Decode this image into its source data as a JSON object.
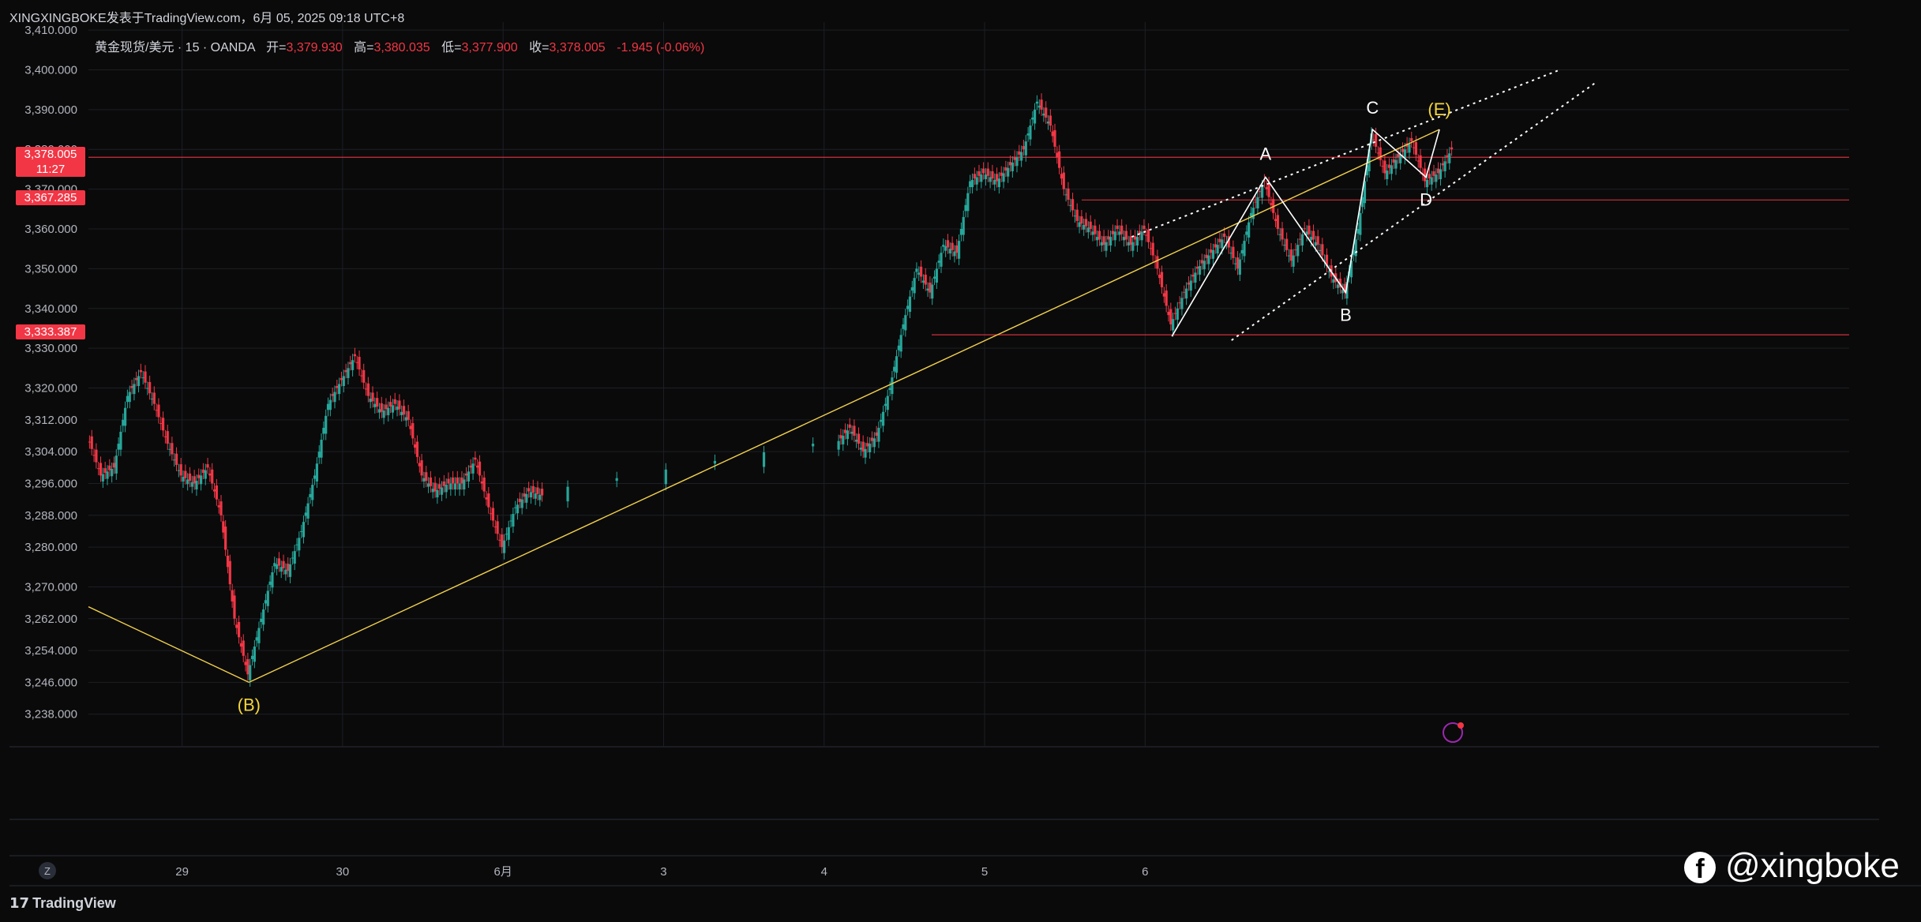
{
  "header": {
    "attribution": "XINGXINGBOKE发表于TradingView.com，6月 05, 2025 09:18 UTC+8"
  },
  "legend": {
    "symbol": "黄金现货/美元 · 15 · OANDA",
    "open_label": "开=",
    "open": "3,379.930",
    "high_label": "高=",
    "high": "3,380.035",
    "low_label": "低=",
    "low": "3,377.900",
    "close_label": "收=",
    "close": "3,378.005",
    "change": "-1.945 (-0.06%)"
  },
  "price_tags": [
    {
      "price": "3,378.005",
      "sub": "11:27",
      "value": 3378.005
    },
    {
      "price": "3,367.285",
      "value": 3367.285
    },
    {
      "price": "3,333.387",
      "value": 3333.387
    }
  ],
  "footer": {
    "brand": "TradingView",
    "scale_button": "Z"
  },
  "watermark": {
    "handle": "@xingboke",
    "logo": "facebook-icon"
  },
  "colors": {
    "up": "#26a69a",
    "down": "#f23645",
    "trendline": "#f2d14c",
    "level": "#f23645",
    "pattern": "#ffffff",
    "label_yellow": "#f5d53b"
  },
  "chart_data": {
    "type": "line",
    "title": "",
    "xlabel": "",
    "ylabel": "",
    "ylim": [
      3230,
      3412
    ],
    "y_ticks": [
      "3,410.000",
      "3,400.000",
      "3,390.000",
      "3,380.000",
      "3,370.000",
      "3,360.000",
      "3,350.000",
      "3,340.000",
      "3,330.000",
      "3,320.000",
      "3,312.000",
      "3,304.000",
      "3,296.000",
      "3,288.000",
      "3,280.000",
      "3,270.000",
      "3,262.000",
      "3,254.000",
      "3,246.000",
      "3,238.000"
    ],
    "x_ticks": [
      "29",
      "30",
      "6月",
      "3",
      "4",
      "5",
      "6"
    ],
    "grid": true,
    "series": [
      {
        "values": [
          {
            "x": "5/28 10:00",
            "y": 3308
          },
          {
            "x": "5/28 12:00",
            "y": 3298
          },
          {
            "x": "5/28 14:00",
            "y": 3300
          },
          {
            "x": "5/28 16:00",
            "y": 3318
          },
          {
            "x": "5/28 18:00",
            "y": 3324
          },
          {
            "x": "5/28 20:00",
            "y": 3316
          },
          {
            "x": "5/28 22:00",
            "y": 3306
          },
          {
            "x": "5/29 00:00",
            "y": 3298
          },
          {
            "x": "5/29 02:00",
            "y": 3296
          },
          {
            "x": "5/29 04:00",
            "y": 3300
          },
          {
            "x": "5/29 06:00",
            "y": 3288
          },
          {
            "x": "5/29 08:00",
            "y": 3262
          },
          {
            "x": "5/29 10:00",
            "y": 3248
          },
          {
            "x": "5/29 12:00",
            "y": 3262
          },
          {
            "x": "5/29 14:00",
            "y": 3276
          },
          {
            "x": "5/29 16:00",
            "y": 3274
          },
          {
            "x": "5/29 18:00",
            "y": 3284
          },
          {
            "x": "5/29 20:00",
            "y": 3298
          },
          {
            "x": "5/29 22:00",
            "y": 3316
          },
          {
            "x": "5/30 00:00",
            "y": 3322
          },
          {
            "x": "5/30 02:00",
            "y": 3328
          },
          {
            "x": "5/30 04:00",
            "y": 3318
          },
          {
            "x": "5/30 06:00",
            "y": 3314
          },
          {
            "x": "5/30 08:00",
            "y": 3316
          },
          {
            "x": "5/30 10:00",
            "y": 3312
          },
          {
            "x": "5/30 12:00",
            "y": 3298
          },
          {
            "x": "5/30 14:00",
            "y": 3294
          },
          {
            "x": "5/30 16:00",
            "y": 3296
          },
          {
            "x": "5/30 18:00",
            "y": 3296
          },
          {
            "x": "5/30 20:00",
            "y": 3302
          },
          {
            "x": "5/30 22:00",
            "y": 3290
          },
          {
            "x": "5/31 00:00",
            "y": 3280
          },
          {
            "x": "5/31 02:00",
            "y": 3290
          },
          {
            "x": "5/31 04:00",
            "y": 3294
          },
          {
            "x": "5/31 06:00",
            "y": 3293
          },
          {
            "x": "6/2 02:00",
            "y": 3306
          },
          {
            "x": "6/2 04:00",
            "y": 3310
          },
          {
            "x": "6/2 06:00",
            "y": 3304
          },
          {
            "x": "6/2 08:00",
            "y": 3308
          },
          {
            "x": "6/2 10:00",
            "y": 3320
          },
          {
            "x": "6/2 12:00",
            "y": 3336
          },
          {
            "x": "6/2 14:00",
            "y": 3350
          },
          {
            "x": "6/2 16:00",
            "y": 3344
          },
          {
            "x": "6/2 18:00",
            "y": 3356
          },
          {
            "x": "6/2 20:00",
            "y": 3354
          },
          {
            "x": "6/2 22:00",
            "y": 3372
          },
          {
            "x": "6/3 00:00",
            "y": 3374
          },
          {
            "x": "6/3 02:00",
            "y": 3372
          },
          {
            "x": "6/3 04:00",
            "y": 3376
          },
          {
            "x": "6/3 06:00",
            "y": 3380
          },
          {
            "x": "6/3 08:00",
            "y": 3392
          },
          {
            "x": "6/3 10:00",
            "y": 3386
          },
          {
            "x": "6/3 12:00",
            "y": 3370
          },
          {
            "x": "6/3 14:00",
            "y": 3362
          },
          {
            "x": "6/3 16:00",
            "y": 3360
          },
          {
            "x": "6/3 18:00",
            "y": 3356
          },
          {
            "x": "6/3 20:00",
            "y": 3360
          },
          {
            "x": "6/3 22:00",
            "y": 3356
          },
          {
            "x": "6/4 00:00",
            "y": 3360
          },
          {
            "x": "6/4 02:00",
            "y": 3350
          },
          {
            "x": "6/4 04:00",
            "y": 3336
          },
          {
            "x": "6/4 06:00",
            "y": 3344
          },
          {
            "x": "6/4 08:00",
            "y": 3350
          },
          {
            "x": "6/4 10:00",
            "y": 3354
          },
          {
            "x": "6/4 12:00",
            "y": 3358
          },
          {
            "x": "6/4 14:00",
            "y": 3350
          },
          {
            "x": "6/4 16:00",
            "y": 3364
          },
          {
            "x": "6/4 18:00",
            "y": 3372
          },
          {
            "x": "6/4 20:00",
            "y": 3360
          },
          {
            "x": "6/4 22:00",
            "y": 3352
          },
          {
            "x": "6/5 00:00",
            "y": 3360
          },
          {
            "x": "6/5 02:00",
            "y": 3356
          },
          {
            "x": "6/5 04:00",
            "y": 3348
          },
          {
            "x": "6/5 06:00",
            "y": 3344
          },
          {
            "x": "6/5 08:00",
            "y": 3360
          },
          {
            "x": "6/5 10:00",
            "y": 3384
          },
          {
            "x": "6/5 12:00",
            "y": 3374
          },
          {
            "x": "6/5 14:00",
            "y": 3378
          },
          {
            "x": "6/5 16:00",
            "y": 3382
          },
          {
            "x": "6/5 18:00",
            "y": 3372
          },
          {
            "x": "6/5 20:00",
            "y": 3374
          },
          {
            "x": "6/5 22:00",
            "y": 3380
          }
        ]
      }
    ],
    "horizontal_levels": [
      3378.005,
      3367.285,
      3333.387
    ],
    "annotations": [
      "A",
      "B",
      "C",
      "D",
      "(E)",
      "(B)"
    ]
  }
}
